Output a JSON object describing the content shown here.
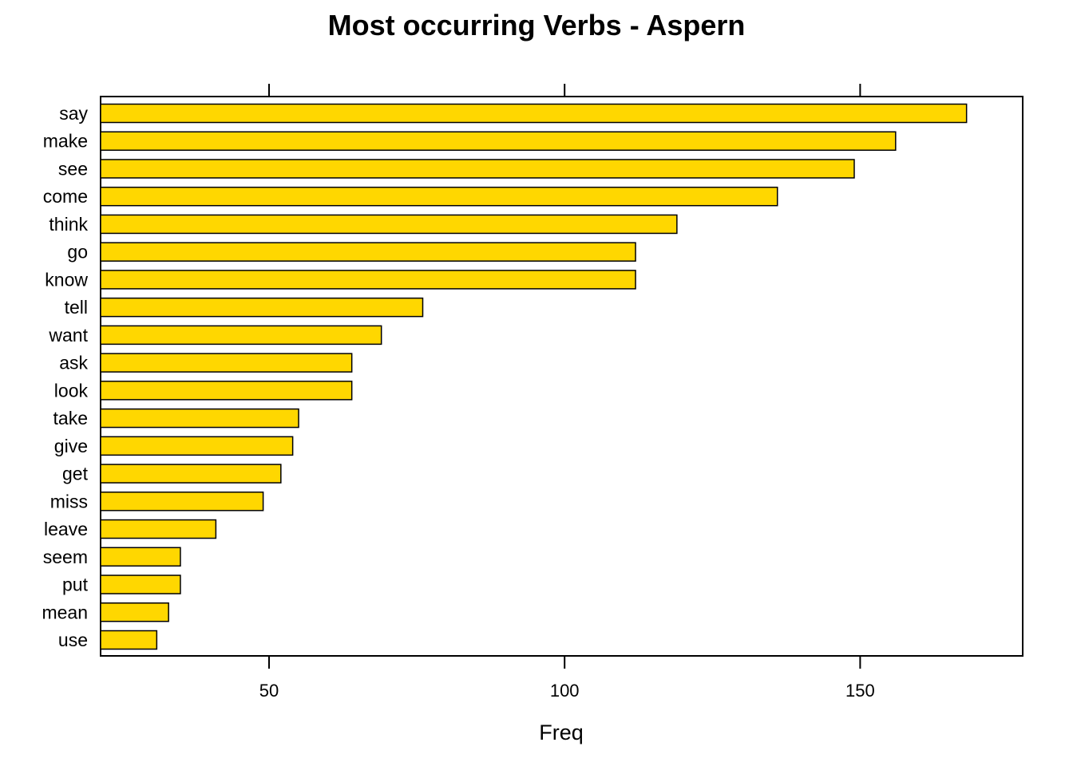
{
  "chart_data": {
    "type": "bar",
    "orientation": "horizontal",
    "title": "Most occurring Verbs - Aspern",
    "xlabel": "Freq",
    "ylabel": "",
    "xlim": [
      21.5,
      177.5
    ],
    "xticks": [
      50,
      100,
      150
    ],
    "bar_color": "#FFD700",
    "bar_border": "#000000",
    "grid": false,
    "categories": [
      "say",
      "make",
      "see",
      "come",
      "think",
      "go",
      "know",
      "tell",
      "want",
      "ask",
      "look",
      "take",
      "give",
      "get",
      "miss",
      "leave",
      "seem",
      "put",
      "mean",
      "use"
    ],
    "values": [
      168,
      156,
      149,
      136,
      119,
      112,
      112,
      76,
      69,
      64,
      64,
      55,
      54,
      52,
      49,
      41,
      35,
      35,
      33,
      31
    ]
  }
}
